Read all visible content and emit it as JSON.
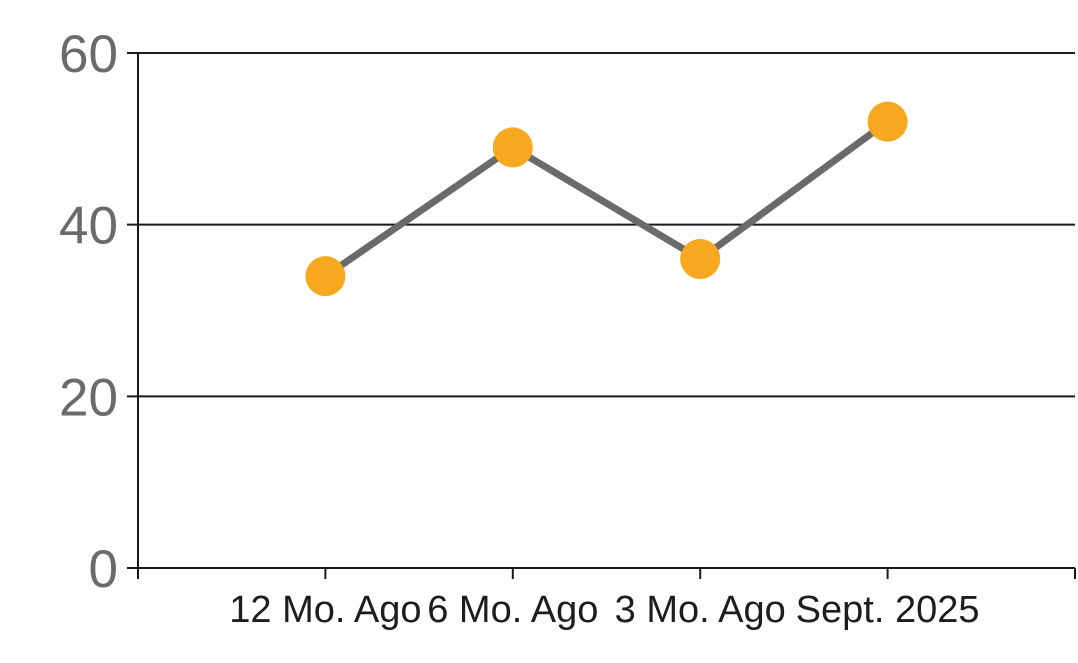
{
  "chart_data": {
    "type": "line",
    "title": "",
    "xlabel": "",
    "ylabel": "",
    "categories": [
      "12 Mo. Ago",
      "6 Mo. Ago",
      "3 Mo. Ago",
      "Sept. 2025"
    ],
    "series": [
      {
        "name": "values",
        "values": [
          34,
          49,
          36,
          52
        ]
      }
    ],
    "ylim": [
      0,
      60
    ],
    "yticks": [
      0,
      20,
      40,
      60
    ],
    "grid": true,
    "legend_position": "none",
    "marker_style": "filled-circle",
    "colors": {
      "marker": "#F7A81E",
      "line": "#6A6A6A",
      "axis": "#1A1A1A",
      "gridline": "#1A1A1A",
      "ytick_label": "#6A6A6C",
      "xtick_label": "#1D1D1D",
      "background": "#FFFFFF"
    }
  }
}
